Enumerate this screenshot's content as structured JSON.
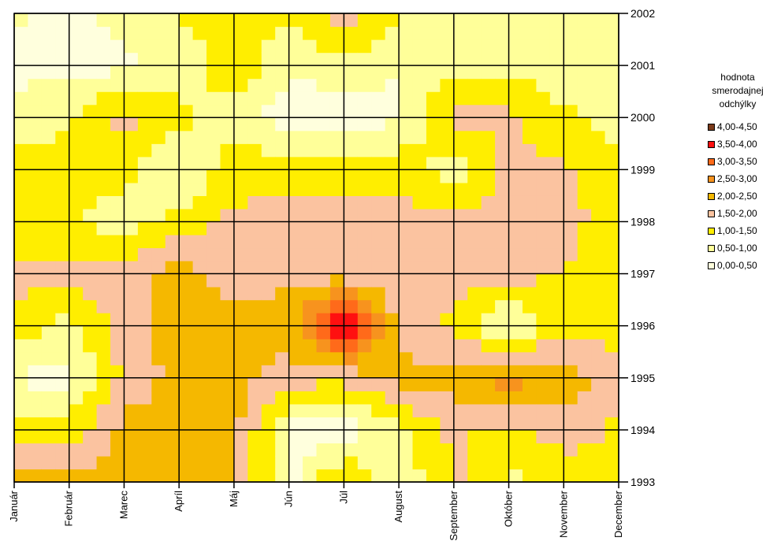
{
  "chart_data": {
    "type": "contour",
    "x_categories": [
      "Január",
      "Február",
      "Marec",
      "Apríl",
      "Máj",
      "Jún",
      "Júl",
      "August",
      "September",
      "Október",
      "November",
      "December"
    ],
    "y_categories": [
      "1993",
      "1994",
      "1995",
      "1996",
      "1997",
      "1998",
      "1999",
      "2000",
      "2001",
      "2002"
    ],
    "legend": {
      "title_lines": [
        "hodnota",
        "smerodajnej",
        "odchýlky"
      ],
      "items": [
        {
          "label": "4,00-4,50",
          "color": "#7a3a1a"
        },
        {
          "label": "3,50-4,00",
          "color": "#ff1010"
        },
        {
          "label": "3,00-3,50",
          "color": "#ff6a1a"
        },
        {
          "label": "2,50-3,00",
          "color": "#f7931e"
        },
        {
          "label": "2,00-2,50",
          "color": "#f5b800"
        },
        {
          "label": "1,50-2,00",
          "color": "#fbc3a0"
        },
        {
          "label": "1,00-1,50",
          "color": "#ffee00"
        },
        {
          "label": "0,50-1,00",
          "color": "#ffff99"
        },
        {
          "label": "0,00-0,50",
          "color": "#ffffdd"
        }
      ]
    },
    "values": [
      [
        2.2,
        2.2,
        2.2,
        2.2,
        2.2,
        0.3,
        1.6,
        0.6,
        1.6,
        0.9,
        1.1,
        1.4
      ],
      [
        1.3,
        1.2,
        2.2,
        2.2,
        2.2,
        0.3,
        0.2,
        0.9,
        1.6,
        1.3,
        1.8,
        1.4
      ],
      [
        0.4,
        0.3,
        1.6,
        2.2,
        2.2,
        1.8,
        1.6,
        2.2,
        2.2,
        2.8,
        2.3,
        1.7
      ],
      [
        1.4,
        0.8,
        1.8,
        2.3,
        2.3,
        2.2,
        4.2,
        1.8,
        1.4,
        0.3,
        1.3,
        1.3
      ],
      [
        1.6,
        1.7,
        1.7,
        2.2,
        1.7,
        1.9,
        1.7,
        1.6,
        1.7,
        1.7,
        1.5,
        1.2
      ],
      [
        1.1,
        1.1,
        0.7,
        1.2,
        1.6,
        1.7,
        1.7,
        1.7,
        1.7,
        1.7,
        1.7,
        1.2
      ],
      [
        1.2,
        1.2,
        1.2,
        0.4,
        1.3,
        1.3,
        1.2,
        1.4,
        0.7,
        1.6,
        1.6,
        1.2
      ],
      [
        0.8,
        0.9,
        1.7,
        1.2,
        0.7,
        0.2,
        0.2,
        0.4,
        1.7,
        1.6,
        1.1,
        0.8
      ],
      [
        0.3,
        0.3,
        0.4,
        0.6,
        1.4,
        0.6,
        0.8,
        0.5,
        0.8,
        0.8,
        0.7,
        0.6
      ],
      [
        0.6,
        0.4,
        0.6,
        1.1,
        1.2,
        1.1,
        1.9,
        1.1,
        0.6,
        0.8,
        0.9,
        0.6
      ]
    ],
    "levels": [
      0,
      0.5,
      1.0,
      1.5,
      2.0,
      2.5,
      3.0,
      3.5,
      4.0,
      4.5
    ],
    "grid": true
  }
}
